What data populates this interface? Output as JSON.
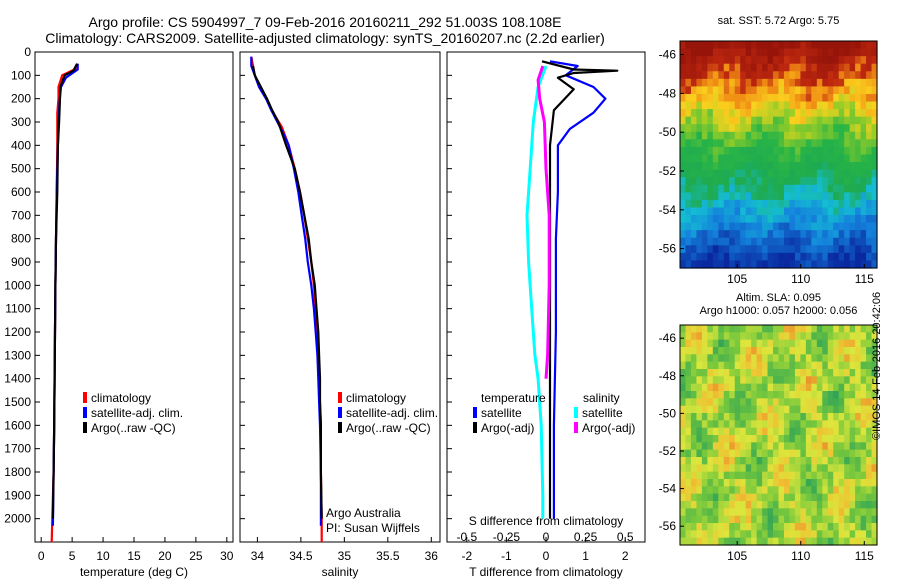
{
  "title": {
    "line1": "Argo profile: CS 5904997_7 09-Feb-2016 20160211_292 51.003S 108.108E",
    "line2": "Climatology: CARS2009. Satellite-adjusted climatology: synTS_20160207.nc (2.2d earlier)"
  },
  "credit": "©IMOS 14-Feb-2016 20:42:06",
  "colors": {
    "climatology": "#ff0000",
    "satellite": "#0000ff",
    "argo": "#000000",
    "sal_sat": "#00ffff",
    "sal_argo": "#ff00ff"
  },
  "chart_data": [
    {
      "type": "line",
      "id": "temperature",
      "xlabel": "temperature (deg C)",
      "ylabel": "",
      "xlim": [
        -1,
        31
      ],
      "ylim": [
        2100,
        0
      ],
      "xticks": [
        0,
        5,
        10,
        15,
        20,
        25,
        30
      ],
      "yticks": [
        0,
        100,
        200,
        300,
        400,
        500,
        600,
        700,
        800,
        900,
        1000,
        1100,
        1200,
        1300,
        1400,
        1500,
        1600,
        1700,
        1800,
        1900,
        2000
      ],
      "legend": [
        "climatology",
        "satellite-adj. clim.",
        "Argo(..raw -QC)"
      ],
      "series": [
        {
          "name": "climatology",
          "points": [
            [
              5.9,
              50
            ],
            [
              5.8,
              70
            ],
            [
              3.4,
              100
            ],
            [
              2.8,
              150
            ],
            [
              2.8,
              200
            ],
            [
              2.6,
              260
            ],
            [
              2.6,
              400
            ],
            [
              2.5,
              600
            ],
            [
              2.4,
              800
            ],
            [
              2.3,
              1000
            ],
            [
              2.2,
              1300
            ],
            [
              2.1,
              1600
            ],
            [
              2.0,
              1800
            ],
            [
              1.8,
              2000
            ],
            [
              1.7,
              2100
            ]
          ]
        },
        {
          "name": "satellite-adj. clim.",
          "points": [
            [
              5.9,
              50
            ],
            [
              5.9,
              75
            ],
            [
              4.0,
              110
            ],
            [
              3.2,
              150
            ],
            [
              3.0,
              200
            ],
            [
              2.8,
              300
            ],
            [
              2.7,
              400
            ],
            [
              2.5,
              600
            ],
            [
              2.4,
              800
            ],
            [
              2.3,
              1000
            ],
            [
              2.2,
              1300
            ],
            [
              2.1,
              1600
            ],
            [
              2.0,
              1800
            ],
            [
              1.9,
              2030
            ]
          ]
        },
        {
          "name": "Argo(..raw -QC)",
          "points": [
            [
              5.8,
              50
            ],
            [
              5.2,
              80
            ],
            [
              3.8,
              100
            ],
            [
              3.1,
              150
            ],
            [
              3.0,
              220
            ],
            [
              2.9,
              300
            ],
            [
              2.7,
              400
            ],
            [
              2.6,
              600
            ],
            [
              2.4,
              800
            ],
            [
              2.3,
              1000
            ],
            [
              2.2,
              1300
            ],
            [
              2.1,
              1600
            ],
            [
              2.0,
              1800
            ],
            [
              1.9,
              2000
            ]
          ]
        }
      ]
    },
    {
      "type": "line",
      "id": "salinity",
      "xlabel": "salinity",
      "ylabel": "",
      "xlim": [
        33.8,
        36.1
      ],
      "ylim": [
        2100,
        0
      ],
      "xticks": [
        34,
        34.5,
        35,
        35.5,
        36
      ],
      "xticklabels": [
        "34",
        "34.5",
        "35",
        "35.5",
        "36"
      ],
      "legend": [
        "climatology",
        "satellite-adj. clim.",
        "Argo(..raw -QC)"
      ],
      "note": [
        "Argo Australia",
        "PI: Susan Wijffels"
      ],
      "series": [
        {
          "name": "climatology",
          "points": [
            [
              33.93,
              20
            ],
            [
              33.95,
              60
            ],
            [
              33.97,
              100
            ],
            [
              34.02,
              150
            ],
            [
              34.1,
              200
            ],
            [
              34.18,
              260
            ],
            [
              34.28,
              320
            ],
            [
              34.36,
              400
            ],
            [
              34.43,
              500
            ],
            [
              34.49,
              600
            ],
            [
              34.54,
              700
            ],
            [
              34.58,
              800
            ],
            [
              34.62,
              900
            ],
            [
              34.65,
              1000
            ],
            [
              34.67,
              1100
            ],
            [
              34.69,
              1200
            ],
            [
              34.7,
              1300
            ],
            [
              34.71,
              1400
            ],
            [
              34.72,
              1500
            ],
            [
              34.73,
              1600
            ],
            [
              34.73,
              1800
            ],
            [
              34.74,
              2000
            ],
            [
              34.74,
              2100
            ]
          ]
        },
        {
          "name": "satellite-adj. clim.",
          "points": [
            [
              33.93,
              20
            ],
            [
              33.93,
              60
            ],
            [
              33.97,
              100
            ],
            [
              34.02,
              150
            ],
            [
              34.1,
              200
            ],
            [
              34.16,
              250
            ],
            [
              34.23,
              300
            ],
            [
              34.3,
              350
            ],
            [
              34.36,
              400
            ],
            [
              34.42,
              500
            ],
            [
              34.47,
              600
            ],
            [
              34.51,
              700
            ],
            [
              34.55,
              800
            ],
            [
              34.58,
              900
            ],
            [
              34.62,
              1000
            ],
            [
              34.65,
              1100
            ],
            [
              34.67,
              1200
            ],
            [
              34.69,
              1300
            ],
            [
              34.7,
              1400
            ],
            [
              34.71,
              1500
            ],
            [
              34.72,
              1600
            ],
            [
              34.73,
              1800
            ],
            [
              34.73,
              2030
            ]
          ]
        },
        {
          "name": "Argo(..raw -QC)",
          "points": [
            [
              33.95,
              60
            ],
            [
              33.97,
              100
            ],
            [
              34.04,
              150
            ],
            [
              34.11,
              200
            ],
            [
              34.17,
              250
            ],
            [
              34.24,
              300
            ],
            [
              34.33,
              400
            ],
            [
              34.43,
              500
            ],
            [
              34.49,
              600
            ],
            [
              34.54,
              700
            ],
            [
              34.59,
              800
            ],
            [
              34.62,
              900
            ],
            [
              34.66,
              1000
            ],
            [
              34.68,
              1100
            ],
            [
              34.7,
              1200
            ],
            [
              34.71,
              1300
            ],
            [
              34.72,
              1400
            ],
            [
              34.72,
              1500
            ],
            [
              34.73,
              1600
            ],
            [
              34.73,
              1800
            ],
            [
              34.74,
              2000
            ]
          ]
        }
      ]
    },
    {
      "type": "line",
      "id": "difference",
      "xlabel": "T difference from climatology",
      "xlabel_top": "S difference from climatology",
      "xlim": [
        -2.5,
        2.5
      ],
      "ylim": [
        2100,
        0
      ],
      "xticks": [
        -2,
        -1,
        0,
        1,
        2
      ],
      "xticks_s": [
        -0.5,
        -0.25,
        0,
        0.25,
        0.5
      ],
      "xticklabels_s": [
        "-0.5",
        "-0.25",
        "0",
        "0.25",
        "0.5"
      ],
      "legend_temperature_heading": "temperature",
      "legend_salinity_heading": "salinity",
      "legend_temperature": [
        "satellite",
        "Argo(-adj)"
      ],
      "legend_salinity": [
        "satellite",
        "Argo(-adj)"
      ],
      "series": [
        {
          "name": "satellite",
          "group": "temperature",
          "points": [
            [
              0.1,
              40
            ],
            [
              0.8,
              60
            ],
            [
              0.5,
              100
            ],
            [
              1.2,
              150
            ],
            [
              1.5,
              200
            ],
            [
              1.2,
              260
            ],
            [
              0.6,
              330
            ],
            [
              0.3,
              400
            ],
            [
              0.3,
              600
            ],
            [
              0.25,
              800
            ],
            [
              0.25,
              1200
            ],
            [
              0.2,
              1600
            ],
            [
              0.2,
              2000
            ]
          ]
        },
        {
          "name": "Argo(-adj)",
          "group": "temperature",
          "points": [
            [
              -0.1,
              40
            ],
            [
              0.7,
              75
            ],
            [
              1.8,
              80
            ],
            [
              0.7,
              90
            ],
            [
              0.3,
              110
            ],
            [
              0.7,
              160
            ],
            [
              0.2,
              250
            ],
            [
              0.1,
              400
            ],
            [
              0.1,
              600
            ],
            [
              0.1,
              1000
            ],
            [
              0.1,
              1400
            ],
            [
              0.1,
              2000
            ]
          ]
        },
        {
          "name": "satellite",
          "group": "salinity",
          "points": [
            [
              0.0,
              60
            ],
            [
              -0.05,
              150
            ],
            [
              -0.08,
              300
            ],
            [
              -0.1,
              500
            ],
            [
              -0.12,
              700
            ],
            [
              -0.11,
              900
            ],
            [
              -0.09,
              1100
            ],
            [
              -0.07,
              1300
            ],
            [
              -0.05,
              1400
            ],
            [
              -0.03,
              1600
            ],
            [
              -0.02,
              1900
            ],
            [
              -0.02,
              2000
            ]
          ]
        },
        {
          "name": "Argo(-adj)",
          "group": "salinity",
          "points": [
            [
              -0.02,
              60
            ],
            [
              -0.05,
              120
            ],
            [
              -0.04,
              200
            ],
            [
              -0.01,
              300
            ],
            [
              0.0,
              500
            ],
            [
              0.02,
              700
            ],
            [
              0.02,
              1000
            ],
            [
              0.01,
              1300
            ],
            [
              0.0,
              1400
            ]
          ]
        }
      ]
    },
    {
      "type": "heatmap",
      "id": "sst-map",
      "title": "sat. SST: 5.72  Argo: 5.75",
      "xticks": [
        105,
        110,
        115
      ],
      "yticks": [
        -46,
        -48,
        -50,
        -52,
        -54,
        -56
      ],
      "xlim": [
        100.5,
        116
      ],
      "ylim": [
        -57,
        -45.3
      ]
    },
    {
      "type": "heatmap",
      "id": "sla-map",
      "title": "Altim. SLA: 0.095",
      "subtitle": "Argo h1000: 0.057 h2000: 0.056",
      "xticks": [
        105,
        110,
        115
      ],
      "yticks": [
        -46,
        -48,
        -50,
        -52,
        -54,
        -56
      ],
      "xlim": [
        100.5,
        116
      ],
      "ylim": [
        -57,
        -45.3
      ]
    }
  ]
}
